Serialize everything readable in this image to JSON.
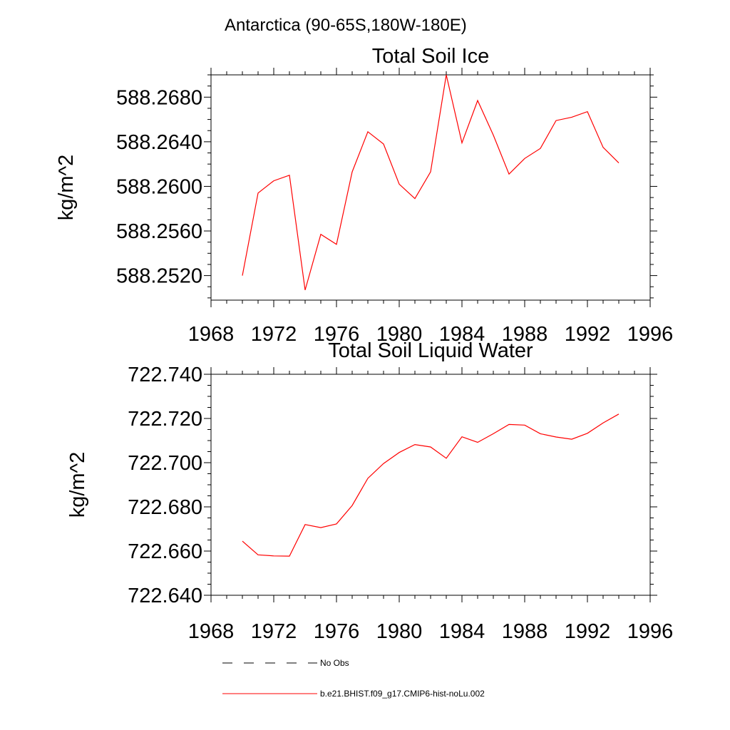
{
  "figure_title": "Antarctica (90-65S,180W-180E)",
  "line_color": "#ff0000",
  "legend": [
    {
      "label": "No Obs",
      "style": "dashed",
      "color": "#000000"
    },
    {
      "label": "b.e21.BHIST.f09_g17.CMIP6-hist-noLu.002",
      "style": "solid",
      "color": "#ff0000"
    }
  ],
  "chart_data": [
    {
      "type": "line",
      "title": "Total Soil Ice",
      "xlabel": "",
      "ylabel": "kg/m^2",
      "xlim": [
        1968,
        1996
      ],
      "ylim": [
        588.2498,
        588.27
      ],
      "x_ticks": [
        "1968",
        "1972",
        "1976",
        "1980",
        "1984",
        "1988",
        "1992",
        "1996"
      ],
      "y_ticks": [
        "588.2520",
        "588.2560",
        "588.2600",
        "588.2640",
        "588.2680"
      ],
      "grid": false,
      "series": [
        {
          "name": "b.e21.BHIST.f09_g17.CMIP6-hist-noLu.002",
          "x": [
            1970,
            1971,
            1972,
            1973,
            1974,
            1975,
            1976,
            1977,
            1978,
            1979,
            1980,
            1981,
            1982,
            1983,
            1984,
            1985,
            1986,
            1987,
            1988,
            1989,
            1990,
            1991,
            1992,
            1993,
            1994
          ],
          "values": [
            588.252,
            588.2594,
            588.2605,
            588.261,
            588.2507,
            588.2557,
            588.2548,
            588.2613,
            588.2649,
            588.2638,
            588.2602,
            588.2589,
            588.2613,
            588.27,
            588.2639,
            588.2677,
            588.2646,
            588.2611,
            588.2625,
            588.2634,
            588.2659,
            588.2662,
            588.2667,
            588.2635,
            588.2621
          ]
        }
      ]
    },
    {
      "type": "line",
      "title": "Total Soil Liquid Water",
      "xlabel": "",
      "ylabel": "kg/m^2",
      "xlim": [
        1968,
        1996
      ],
      "ylim": [
        722.64,
        722.74
      ],
      "x_ticks": [
        "1968",
        "1972",
        "1976",
        "1980",
        "1984",
        "1988",
        "1992",
        "1996"
      ],
      "y_ticks": [
        "722.640",
        "722.660",
        "722.680",
        "722.700",
        "722.720",
        "722.740"
      ],
      "grid": false,
      "series": [
        {
          "name": "b.e21.BHIST.f09_g17.CMIP6-hist-noLu.002",
          "x": [
            1970,
            1971,
            1972,
            1973,
            1974,
            1975,
            1976,
            1977,
            1978,
            1979,
            1980,
            1981,
            1982,
            1983,
            1984,
            1985,
            1986,
            1987,
            1988,
            1989,
            1990,
            1991,
            1992,
            1993,
            1994
          ],
          "values": [
            722.6645,
            722.6583,
            722.6578,
            722.6577,
            722.672,
            722.6706,
            722.6723,
            722.6806,
            722.6929,
            722.6996,
            722.7046,
            722.7082,
            722.7071,
            722.702,
            722.7117,
            722.7092,
            722.7131,
            722.7173,
            722.717,
            722.7131,
            722.7116,
            722.7106,
            722.7133,
            722.718,
            722.722
          ]
        }
      ]
    }
  ]
}
